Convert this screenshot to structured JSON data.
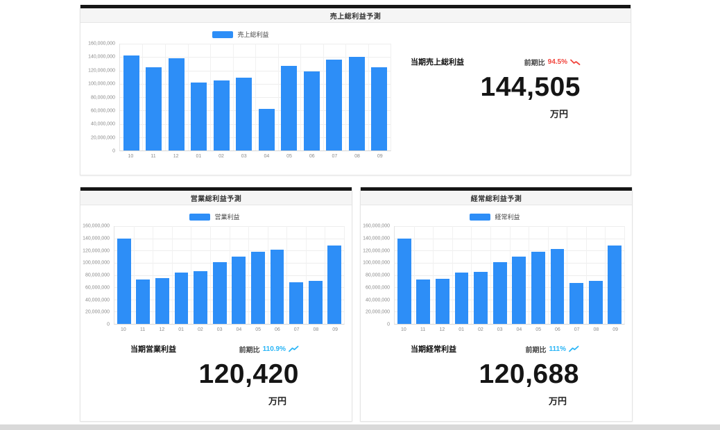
{
  "colors": {
    "bar": "#2d8ef7",
    "accent_bar": "#161616",
    "trend_up": "#29b5f6",
    "trend_down": "#f1443c"
  },
  "panels": [
    {
      "title": "売上総利益予測",
      "legend_label": "売上総利益",
      "kpi": {
        "label": "当期売上総利益",
        "comparison_label": "前期比",
        "comparison_value": "94.5%",
        "trend": "down",
        "value": "144,505",
        "unit": "万円"
      }
    },
    {
      "title": "営業総利益予測",
      "legend_label": "営業利益",
      "kpi": {
        "label": "当期営業利益",
        "comparison_label": "前期比",
        "comparison_value": "110.9%",
        "trend": "up",
        "value": "120,420",
        "unit": "万円"
      }
    },
    {
      "title": "経常総利益予測",
      "legend_label": "経常利益",
      "kpi": {
        "label": "当期経常利益",
        "comparison_label": "前期比",
        "comparison_value": "111%",
        "trend": "up",
        "value": "120,688",
        "unit": "万円"
      }
    }
  ],
  "chart_data": [
    {
      "type": "bar",
      "title": "売上総利益予測",
      "legend": [
        "売上総利益"
      ],
      "legend_position": "top",
      "grid": true,
      "categories": [
        "10",
        "11",
        "12",
        "01",
        "02",
        "03",
        "04",
        "05",
        "06",
        "07",
        "08",
        "09"
      ],
      "values": [
        142500000,
        125000000,
        138000000,
        102000000,
        104500000,
        109500000,
        62000000,
        126500000,
        118000000,
        136000000,
        140500000,
        124500000
      ],
      "xlabel": "",
      "ylabel": "",
      "ylim": [
        0,
        160000000
      ],
      "ytick_step": 20000000
    },
    {
      "type": "bar",
      "title": "営業総利益予測",
      "legend": [
        "営業利益"
      ],
      "legend_position": "top",
      "grid": true,
      "categories": [
        "10",
        "11",
        "12",
        "01",
        "02",
        "03",
        "04",
        "05",
        "06",
        "07",
        "08",
        "09"
      ],
      "values": [
        139500000,
        73000000,
        74500000,
        83500000,
        86000000,
        101000000,
        110500000,
        117500000,
        121500000,
        68000000,
        70500000,
        128000000
      ],
      "xlabel": "",
      "ylabel": "",
      "ylim": [
        0,
        160000000
      ],
      "ytick_step": 20000000
    },
    {
      "type": "bar",
      "title": "経常総利益予測",
      "legend": [
        "経常利益"
      ],
      "legend_position": "top",
      "grid": true,
      "categories": [
        "10",
        "11",
        "12",
        "01",
        "02",
        "03",
        "04",
        "05",
        "06",
        "07",
        "08",
        "09"
      ],
      "values": [
        139500000,
        73000000,
        74000000,
        83500000,
        85500000,
        101000000,
        110000000,
        117500000,
        123000000,
        67500000,
        70000000,
        128500000
      ],
      "xlabel": "",
      "ylabel": "",
      "ylim": [
        0,
        160000000
      ],
      "ytick_step": 20000000
    }
  ]
}
